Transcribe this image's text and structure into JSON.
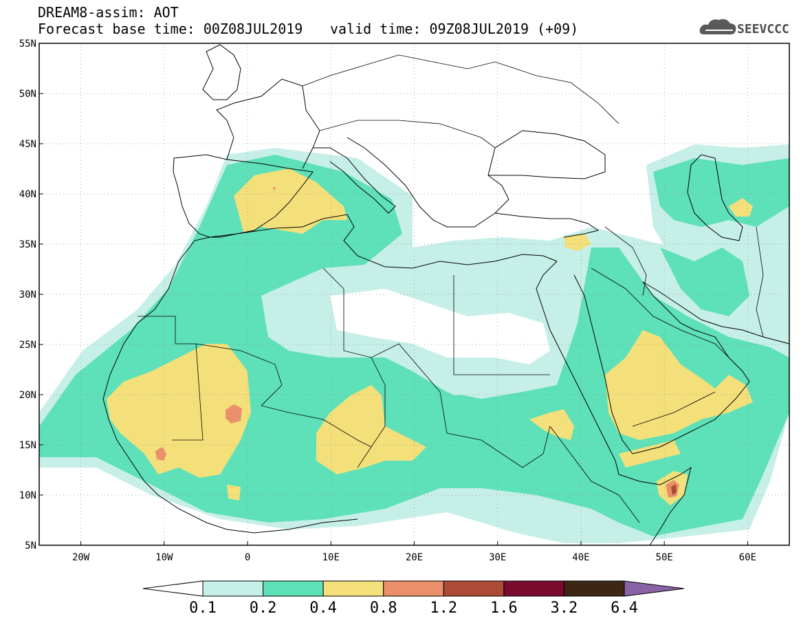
{
  "header": {
    "title": "DREAM8-assim: AOT",
    "base_time_label": "Forecast base time: 00Z08JUL2019",
    "valid_time_label": "valid time: 09Z08JUL2019 (+09)",
    "logo_text": "SEEVCCC"
  },
  "map": {
    "lon_range": [
      -25,
      65
    ],
    "lat_range": [
      5,
      55
    ],
    "lat_labels": [
      {
        "value": 55,
        "label": "55N"
      },
      {
        "value": 50,
        "label": "50N"
      },
      {
        "value": 45,
        "label": "45N"
      },
      {
        "value": 40,
        "label": "40N"
      },
      {
        "value": 35,
        "label": "35N"
      },
      {
        "value": 30,
        "label": "30N"
      },
      {
        "value": 25,
        "label": "25N"
      },
      {
        "value": 20,
        "label": "20N"
      },
      {
        "value": 15,
        "label": "15N"
      },
      {
        "value": 10,
        "label": "10N"
      },
      {
        "value": 5,
        "label": "5N"
      }
    ],
    "lon_labels": [
      {
        "value": -20,
        "label": "20W"
      },
      {
        "value": -10,
        "label": "10W"
      },
      {
        "value": 0,
        "label": "0"
      },
      {
        "value": 10,
        "label": "10E"
      },
      {
        "value": 20,
        "label": "20E"
      },
      {
        "value": 30,
        "label": "30E"
      },
      {
        "value": 40,
        "label": "40E"
      },
      {
        "value": 50,
        "label": "50E"
      },
      {
        "value": 60,
        "label": "60E"
      }
    ],
    "gridlines": "dotted"
  },
  "colorbar": {
    "levels": [
      "0.1",
      "0.2",
      "0.4",
      "0.8",
      "1.2",
      "1.6",
      "3.2",
      "6.4"
    ],
    "colors": [
      "#ffffff",
      "#c6efe8",
      "#5ee0b8",
      "#f4e07a",
      "#ea8f69",
      "#ab4a36",
      "#7a0a2e",
      "#3d2614",
      "#8a63a6"
    ]
  },
  "colors": {
    "bin1": "#c6efe8",
    "bin2": "#5ee0b8",
    "bin3": "#f4e07a",
    "bin4": "#ea8f69",
    "bin5": "#ab4a36"
  }
}
